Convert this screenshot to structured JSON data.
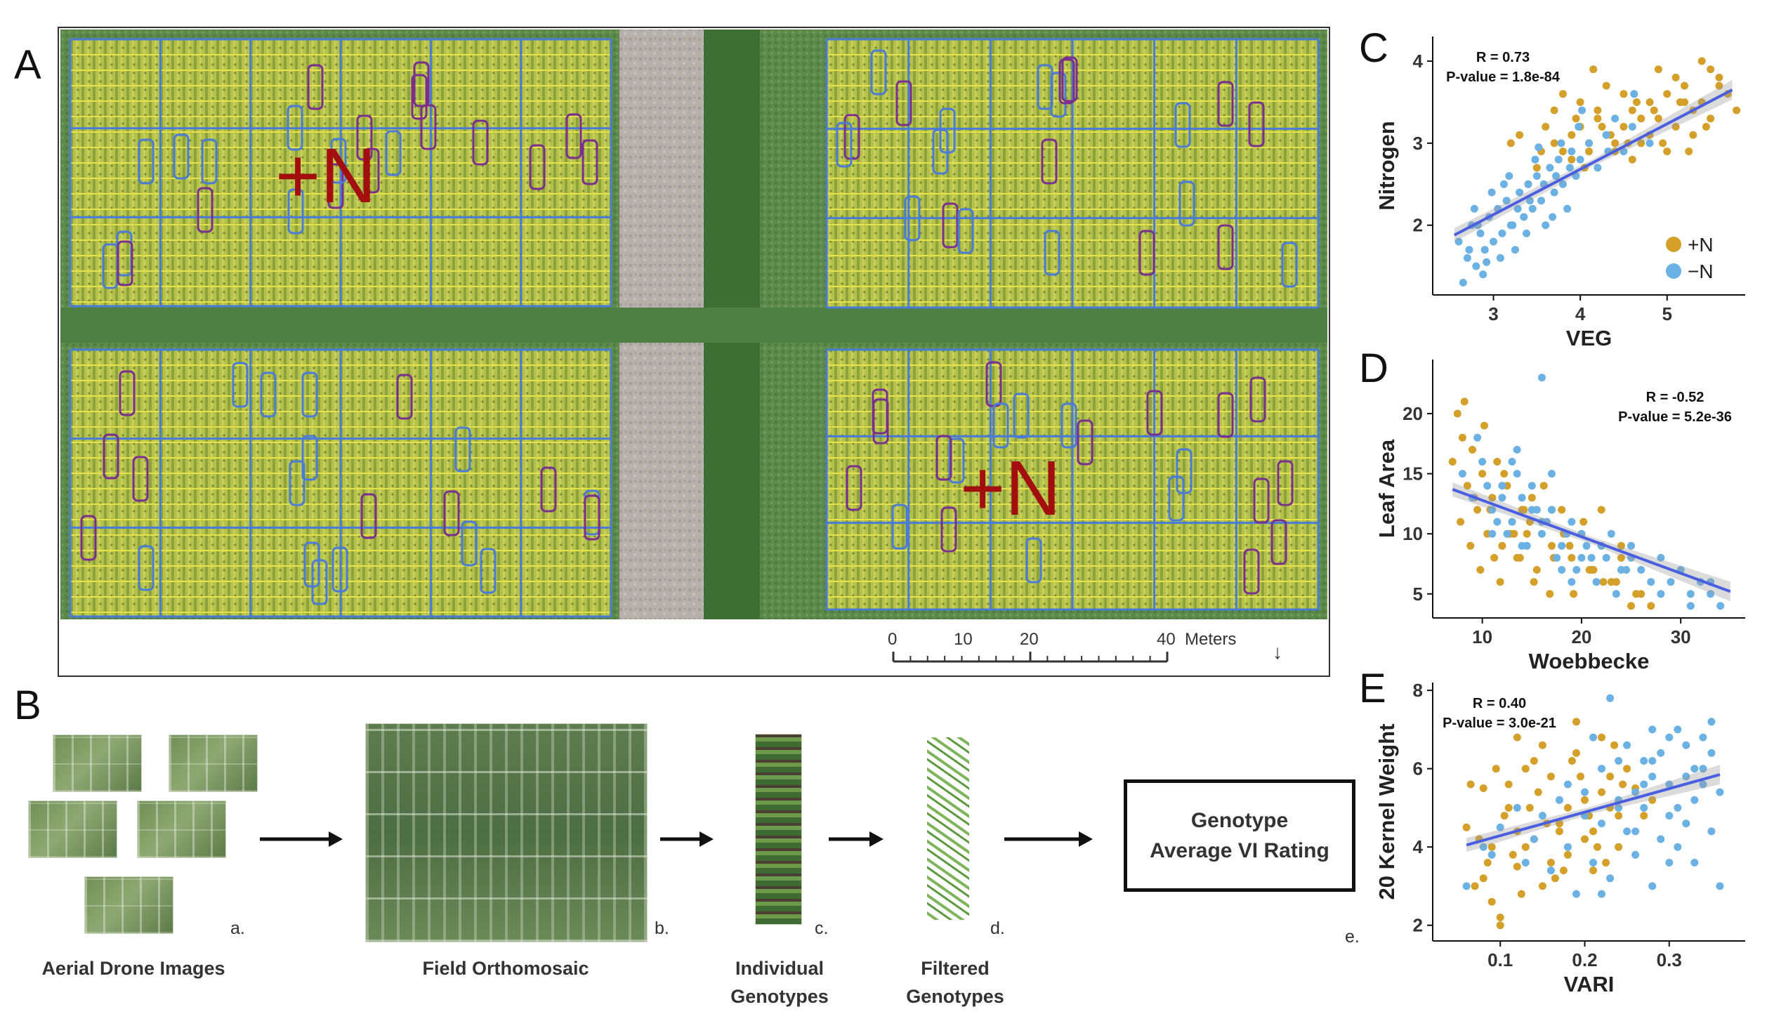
{
  "panel_letters": {
    "a": "A",
    "b": "B",
    "c": "C",
    "d": "D",
    "e": "E"
  },
  "panel_a": {
    "treatment_label_1": "+N",
    "treatment_label_2": "+N",
    "scale_bar": {
      "ticks": [
        "0",
        "10",
        "20",
        "40"
      ],
      "unit": "Meters"
    },
    "colors": {
      "grid_blue": "#4a7bd6",
      "row_yellow": "#e8e24a",
      "plot_purple": "#7a2f8f",
      "label_red": "#a30f0f"
    }
  },
  "panel_b": {
    "steps": [
      {
        "letter": "a.",
        "label": "Aerial Drone Images"
      },
      {
        "letter": "b.",
        "label": "Field Orthomosaic"
      },
      {
        "letter": "c.",
        "label_line1": "Individual",
        "label_line2": "Genotypes"
      },
      {
        "letter": "d.",
        "label_line1": "Filtered",
        "label_line2": "Genotypes"
      },
      {
        "letter": "e.",
        "box_line1": "Genotype",
        "box_line2": "Average VI Rating"
      }
    ]
  },
  "legend": {
    "items": [
      {
        "label": "+N",
        "color": "#d4a02a"
      },
      {
        "label": "−N",
        "color": "#6cb1e3"
      }
    ]
  },
  "chart_data": [
    {
      "type": "scatter",
      "panel": "C",
      "xlabel": "VEG",
      "ylabel": "Nitrogen",
      "xlim": [
        2.3,
        5.9
      ],
      "ylim": [
        1.15,
        4.3
      ],
      "xticks": [
        3,
        4,
        5
      ],
      "yticks": [
        2,
        3,
        4
      ],
      "annotation": [
        "R = 0.73",
        "P-value = 1.8e-84"
      ],
      "regression": {
        "x": [
          2.55,
          5.75
        ],
        "y": [
          1.88,
          3.65
        ]
      },
      "series": [
        {
          "name": "+N",
          "color": "#d4a02a",
          "x": [
            3.5,
            3.7,
            3.8,
            3.9,
            4.0,
            4.1,
            4.2,
            4.3,
            4.4,
            4.5,
            4.6,
            4.7,
            4.8,
            4.9,
            5.0,
            5.1,
            5.2,
            5.3,
            5.4,
            5.5,
            5.6,
            5.7,
            3.6,
            3.9,
            4.2,
            4.5,
            4.8,
            5.1,
            5.4,
            3.3,
            3.4,
            4.0,
            4.1,
            4.3,
            4.6,
            4.9,
            5.2,
            5.5,
            5.8,
            3.8,
            4.4,
            4.7,
            5.0,
            5.3,
            3.2,
            3.7,
            4.25,
            4.55,
            4.85,
            5.15,
            5.45,
            3.95,
            4.05,
            4.35,
            4.65,
            4.95,
            5.25,
            5.6,
            3.55,
            4.15
          ],
          "y": [
            2.7,
            3.0,
            2.9,
            3.1,
            3.2,
            3.0,
            3.3,
            3.1,
            2.9,
            3.2,
            3.4,
            3.0,
            3.5,
            3.3,
            3.6,
            3.2,
            3.7,
            3.4,
            3.5,
            3.3,
            3.8,
            3.6,
            3.2,
            2.8,
            3.4,
            3.6,
            3.1,
            3.8,
            4.0,
            3.1,
            2.5,
            3.5,
            2.9,
            3.7,
            2.8,
            3.9,
            3.5,
            3.9,
            3.4,
            3.6,
            3.0,
            3.3,
            2.9,
            3.1,
            3.0,
            3.4,
            3.2,
            3.0,
            3.4,
            3.5,
            3.2,
            3.3,
            2.7,
            3.1,
            3.5,
            3.0,
            2.9,
            3.7,
            2.9,
            3.9
          ]
        },
        {
          "name": "−N",
          "color": "#6cb1e3",
          "x": [
            2.6,
            2.7,
            2.75,
            2.8,
            2.85,
            2.9,
            2.95,
            3.0,
            3.05,
            3.1,
            3.15,
            3.2,
            3.25,
            3.3,
            3.35,
            3.4,
            3.45,
            3.5,
            3.55,
            3.6,
            3.65,
            3.7,
            3.75,
            3.8,
            3.85,
            3.9,
            3.95,
            4.0,
            4.1,
            4.2,
            4.3,
            4.4,
            4.5,
            4.6,
            4.8,
            2.65,
            2.72,
            2.78,
            2.88,
            2.98,
            3.08,
            3.18,
            3.28,
            3.38,
            3.48,
            3.58,
            3.68,
            3.78,
            3.88,
            3.98,
            2.82,
            3.12,
            3.42,
            3.72,
            4.02,
            4.32,
            4.62,
            2.92,
            3.22,
            3.52
          ],
          "y": [
            1.8,
            1.6,
            2.0,
            1.5,
            1.9,
            1.7,
            2.1,
            1.8,
            2.2,
            1.9,
            2.3,
            2.0,
            1.7,
            2.4,
            2.1,
            2.5,
            2.2,
            2.6,
            2.3,
            2.0,
            2.7,
            2.4,
            2.8,
            2.5,
            2.2,
            2.9,
            2.6,
            2.8,
            3.0,
            2.7,
            3.1,
            3.3,
            2.9,
            3.2,
            3.0,
            1.3,
            1.7,
            2.2,
            1.4,
            2.4,
            1.6,
            2.6,
            2.2,
            1.9,
            2.8,
            2.5,
            2.1,
            3.0,
            2.7,
            3.2,
            2.0,
            2.5,
            2.3,
            2.6,
            3.4,
            2.9,
            3.6,
            1.55,
            2.0,
            2.95
          ]
        }
      ]
    },
    {
      "type": "scatter",
      "panel": "D",
      "xlabel": "Woebbecke",
      "ylabel": "Leaf Area",
      "xlim": [
        5,
        36.5
      ],
      "ylim": [
        3,
        24.5
      ],
      "xticks": [
        10,
        20,
        30
      ],
      "yticks": [
        5,
        10,
        15,
        20
      ],
      "annotation": [
        "R = -0.52",
        "P-value = 5.2e-36"
      ],
      "regression": {
        "x": [
          7,
          35
        ],
        "y": [
          13.7,
          5.2
        ]
      },
      "series": [
        {
          "name": "+N",
          "color": "#d4a02a",
          "x": [
            7,
            7.5,
            8,
            8.5,
            9,
            9.5,
            10,
            10.5,
            11,
            11.5,
            12,
            12.5,
            13,
            13.5,
            14,
            14.5,
            15,
            15.5,
            16,
            17,
            18,
            19,
            20,
            21,
            22,
            23,
            24,
            25,
            26,
            8.2,
            9.2,
            10.2,
            11.2,
            12.2,
            13.2,
            14.2,
            15.2,
            16.2,
            17.2,
            18.2,
            19.2,
            20.2,
            21.2,
            22.2,
            7.8,
            8.8,
            9.8,
            10.8,
            11.8,
            12.8,
            13.8,
            14.8,
            16.8,
            18.8,
            20.8,
            23.5,
            25.5,
            27,
            24,
            22
          ],
          "y": [
            16,
            20,
            18,
            14,
            17,
            12,
            15,
            10,
            13,
            16,
            9,
            14,
            11,
            8,
            12,
            10,
            13,
            7,
            11,
            9,
            12,
            8,
            10,
            7,
            9,
            6,
            8,
            4,
            5,
            21,
            13,
            19,
            8,
            15,
            10,
            12,
            6,
            14,
            8,
            10,
            5,
            11,
            7,
            6,
            11,
            9,
            7,
            12,
            6,
            10,
            8,
            11,
            5,
            9,
            7,
            6,
            5,
            4,
            9,
            12
          ]
        },
        {
          "name": "−N",
          "color": "#6cb1e3",
          "x": [
            8,
            9,
            10,
            11,
            12,
            13,
            14,
            15,
            16,
            17,
            18,
            19,
            20,
            21,
            22,
            23,
            24,
            25,
            26,
            27,
            28,
            29,
            30,
            31,
            32,
            33,
            34,
            10.5,
            11.5,
            12.5,
            13.5,
            14.5,
            15.5,
            16.5,
            17.5,
            18.5,
            19.5,
            20.5,
            21.5,
            22.5,
            23.5,
            24.5,
            9.5,
            12,
            14,
            16,
            18,
            20,
            15,
            17,
            19,
            13,
            11,
            25,
            28,
            31,
            16,
            13.5,
            33,
            17
          ],
          "y": [
            15,
            13,
            16,
            12,
            14,
            11,
            13,
            12,
            10,
            12,
            9,
            11,
            10,
            8,
            9,
            10,
            7,
            8,
            7,
            6,
            8,
            6,
            7,
            5,
            6,
            5,
            4,
            14,
            11,
            10,
            15,
            9,
            12,
            11,
            8,
            10,
            7,
            9,
            6,
            8,
            5,
            7,
            18,
            13,
            9,
            11,
            7,
            8,
            14,
            12,
            6,
            16,
            10,
            9,
            5,
            4,
            23,
            17,
            6,
            15
          ]
        }
      ]
    },
    {
      "type": "scatter",
      "panel": "E",
      "xlabel": "VARI",
      "ylabel": "20 Kernel Weight",
      "xlim": [
        0.02,
        0.39
      ],
      "ylim": [
        1.6,
        8.2
      ],
      "xticks": [
        0.1,
        0.2,
        0.3
      ],
      "yticks": [
        2,
        4,
        6,
        8
      ],
      "annotation": [
        "R = 0.40",
        "P-value = 3.0e-21"
      ],
      "regression": {
        "x": [
          0.06,
          0.36
        ],
        "y": [
          4.05,
          5.85
        ]
      },
      "series": [
        {
          "name": "+N",
          "color": "#d4a02a",
          "x": [
            0.06,
            0.07,
            0.08,
            0.09,
            0.1,
            0.11,
            0.12,
            0.13,
            0.14,
            0.15,
            0.16,
            0.17,
            0.18,
            0.19,
            0.2,
            0.21,
            0.22,
            0.23,
            0.24,
            0.25,
            0.26,
            0.27,
            0.28,
            0.065,
            0.085,
            0.105,
            0.125,
            0.145,
            0.165,
            0.185,
            0.205,
            0.225,
            0.245,
            0.075,
            0.095,
            0.115,
            0.135,
            0.155,
            0.175,
            0.195,
            0.215,
            0.235,
            0.1,
            0.12,
            0.14,
            0.16,
            0.18,
            0.2,
            0.22,
            0.24,
            0.08,
            0.11,
            0.13,
            0.15,
            0.17,
            0.19,
            0.21,
            0.23,
            0.09,
            0.12
          ],
          "y": [
            4.5,
            3.0,
            5.5,
            4.0,
            2.2,
            5.0,
            3.5,
            6.0,
            4.2,
            3.0,
            5.8,
            4.6,
            3.8,
            6.4,
            5.2,
            4.4,
            6.8,
            5.0,
            4.0,
            6.0,
            5.5,
            4.8,
            5.2,
            5.6,
            3.6,
            4.8,
            2.8,
            5.4,
            3.2,
            6.2,
            4.8,
            3.6,
            5.6,
            4.2,
            6.0,
            3.8,
            5.0,
            4.6,
            3.4,
            5.8,
            4.0,
            6.6,
            2.0,
            4.4,
            6.2,
            3.6,
            5.0,
            4.2,
            5.4,
            4.8,
            3.2,
            5.6,
            4.0,
            6.6,
            4.4,
            7.2,
            3.4,
            5.8,
            2.6,
            6.8
          ]
        },
        {
          "name": "−N",
          "color": "#6cb1e3",
          "x": [
            0.06,
            0.08,
            0.1,
            0.12,
            0.14,
            0.16,
            0.18,
            0.2,
            0.22,
            0.24,
            0.26,
            0.28,
            0.3,
            0.32,
            0.34,
            0.36,
            0.21,
            0.23,
            0.25,
            0.27,
            0.29,
            0.31,
            0.33,
            0.35,
            0.2,
            0.22,
            0.24,
            0.26,
            0.28,
            0.3,
            0.32,
            0.34,
            0.19,
            0.25,
            0.27,
            0.29,
            0.31,
            0.33,
            0.35,
            0.36,
            0.17,
            0.23,
            0.28,
            0.3,
            0.32,
            0.34,
            0.15,
            0.21,
            0.26,
            0.3,
            0.33,
            0.35,
            0.28,
            0.24,
            0.22,
            0.31,
            0.27,
            0.09,
            0.13,
            0.18
          ],
          "y": [
            3.0,
            4.0,
            4.5,
            5.0,
            4.2,
            3.4,
            5.6,
            4.8,
            6.0,
            5.2,
            4.4,
            6.2,
            5.6,
            6.6,
            6.0,
            5.4,
            3.6,
            7.8,
            6.6,
            5.0,
            4.2,
            7.0,
            3.6,
            6.4,
            5.4,
            4.6,
            6.2,
            3.8,
            7.0,
            4.8,
            5.8,
            6.8,
            2.8,
            4.4,
            5.6,
            6.4,
            4.0,
            5.2,
            7.2,
            3.0,
            5.2,
            3.2,
            5.8,
            6.8,
            4.6,
            5.6,
            4.8,
            6.8,
            5.4,
            3.6,
            6.0,
            4.4,
            3.0,
            5.0,
            2.8,
            5.0,
            6.2,
            3.8,
            3.6,
            4.0
          ]
        }
      ]
    }
  ]
}
